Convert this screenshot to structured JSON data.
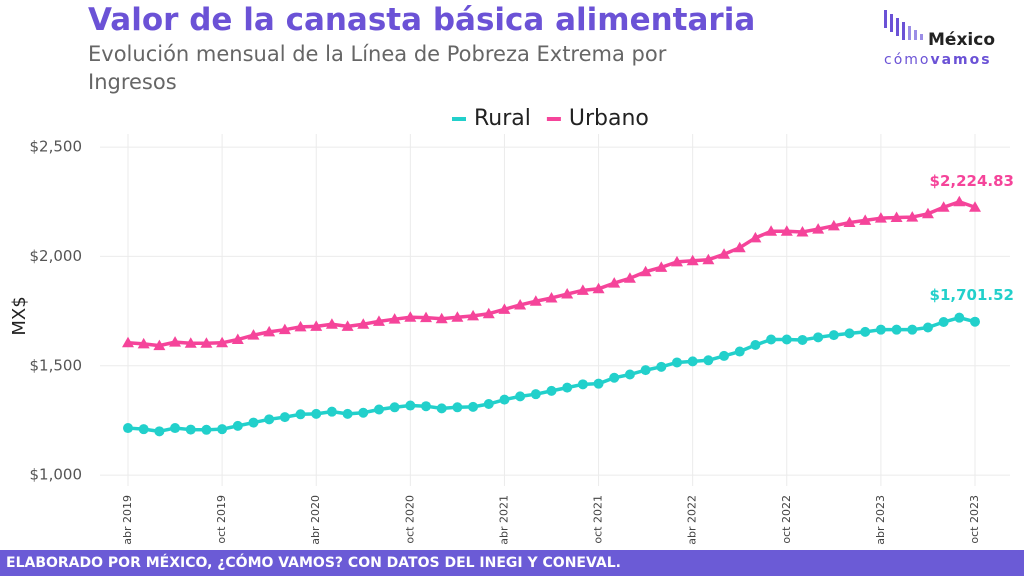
{
  "chart_data": {
    "type": "line",
    "title": "Valor de la canasta básica alimentaria",
    "subtitle": "Evolución mensual de la Línea de Pobreza Extrema por Ingresos",
    "y_label": "MX$",
    "categories": [
      "abr 2019",
      null,
      null,
      null,
      null,
      null,
      "oct 2019",
      null,
      null,
      null,
      null,
      null,
      "abr 2020",
      null,
      null,
      null,
      null,
      null,
      "oct 2020",
      null,
      null,
      null,
      null,
      null,
      "abr 2021",
      null,
      null,
      null,
      null,
      null,
      "oct 2021",
      null,
      null,
      null,
      null,
      null,
      "abr 2022",
      null,
      null,
      null,
      null,
      null,
      "oct 2022",
      null,
      null,
      null,
      null,
      null,
      "abr 2023",
      null,
      null,
      null,
      null,
      null,
      "oct 2023"
    ],
    "series": [
      {
        "name": "Rural",
        "color": "#22d0cb",
        "marker": "circle",
        "values": [
          1215,
          1210,
          1200,
          1215,
          1208,
          1207,
          1210,
          1225,
          1240,
          1255,
          1265,
          1278,
          1280,
          1290,
          1280,
          1285,
          1300,
          1310,
          1318,
          1315,
          1305,
          1310,
          1312,
          1325,
          1345,
          1360,
          1370,
          1385,
          1400,
          1415,
          1418,
          1445,
          1460,
          1480,
          1495,
          1515,
          1520,
          1525,
          1545,
          1565,
          1595,
          1620,
          1620,
          1618,
          1630,
          1640,
          1648,
          1655,
          1665,
          1665,
          1665,
          1675,
          1700,
          1720,
          1701.52
        ],
        "value_labels": [
          null,
          null,
          null,
          null,
          null,
          null,
          null,
          null,
          null,
          null,
          null,
          null,
          null,
          null,
          null,
          null,
          null,
          null,
          null,
          null,
          null,
          null,
          null,
          null,
          null,
          null,
          null,
          null,
          null,
          null,
          null,
          null,
          null,
          null,
          null,
          null,
          null,
          null,
          null,
          null,
          null,
          null,
          null,
          null,
          null,
          null,
          null,
          null,
          null,
          null,
          null,
          null,
          null,
          null,
          "$1,701.52"
        ]
      },
      {
        "name": "Urbano",
        "color": "#f5449a",
        "marker": "triangle",
        "values": [
          1605,
          1600,
          1592,
          1608,
          1603,
          1603,
          1605,
          1620,
          1640,
          1655,
          1665,
          1678,
          1680,
          1690,
          1680,
          1690,
          1703,
          1713,
          1722,
          1720,
          1715,
          1722,
          1728,
          1738,
          1758,
          1778,
          1795,
          1810,
          1828,
          1845,
          1852,
          1878,
          1900,
          1930,
          1950,
          1975,
          1980,
          1985,
          2010,
          2040,
          2085,
          2115,
          2115,
          2112,
          2125,
          2140,
          2155,
          2165,
          2175,
          2178,
          2180,
          2195,
          2225,
          2250,
          2224.83
        ],
        "value_labels": [
          null,
          null,
          null,
          null,
          null,
          null,
          null,
          null,
          null,
          null,
          null,
          null,
          null,
          null,
          null,
          null,
          null,
          null,
          null,
          null,
          null,
          null,
          null,
          null,
          null,
          null,
          null,
          null,
          null,
          null,
          null,
          null,
          null,
          null,
          null,
          null,
          null,
          null,
          null,
          null,
          null,
          null,
          null,
          null,
          null,
          null,
          null,
          null,
          null,
          null,
          null,
          null,
          null,
          null,
          "$2,224.83"
        ]
      }
    ],
    "ylim": [
      950,
      2560
    ],
    "yticks": [
      {
        "value": 1000,
        "label": "$1,000"
      },
      {
        "value": 1500,
        "label": "$1,500"
      },
      {
        "value": 2000,
        "label": "$2,000"
      },
      {
        "value": 2500,
        "label": "$2,500"
      }
    ],
    "grid": true,
    "legend": "top"
  },
  "logo": {
    "name": "México",
    "tag_light": "cómo",
    "tag_bold": "vamos"
  },
  "footer": "ELABORADO POR MÉXICO, ¿CÓMO VAMOS? CON DATOS DEL INEGI Y CONEVAL."
}
